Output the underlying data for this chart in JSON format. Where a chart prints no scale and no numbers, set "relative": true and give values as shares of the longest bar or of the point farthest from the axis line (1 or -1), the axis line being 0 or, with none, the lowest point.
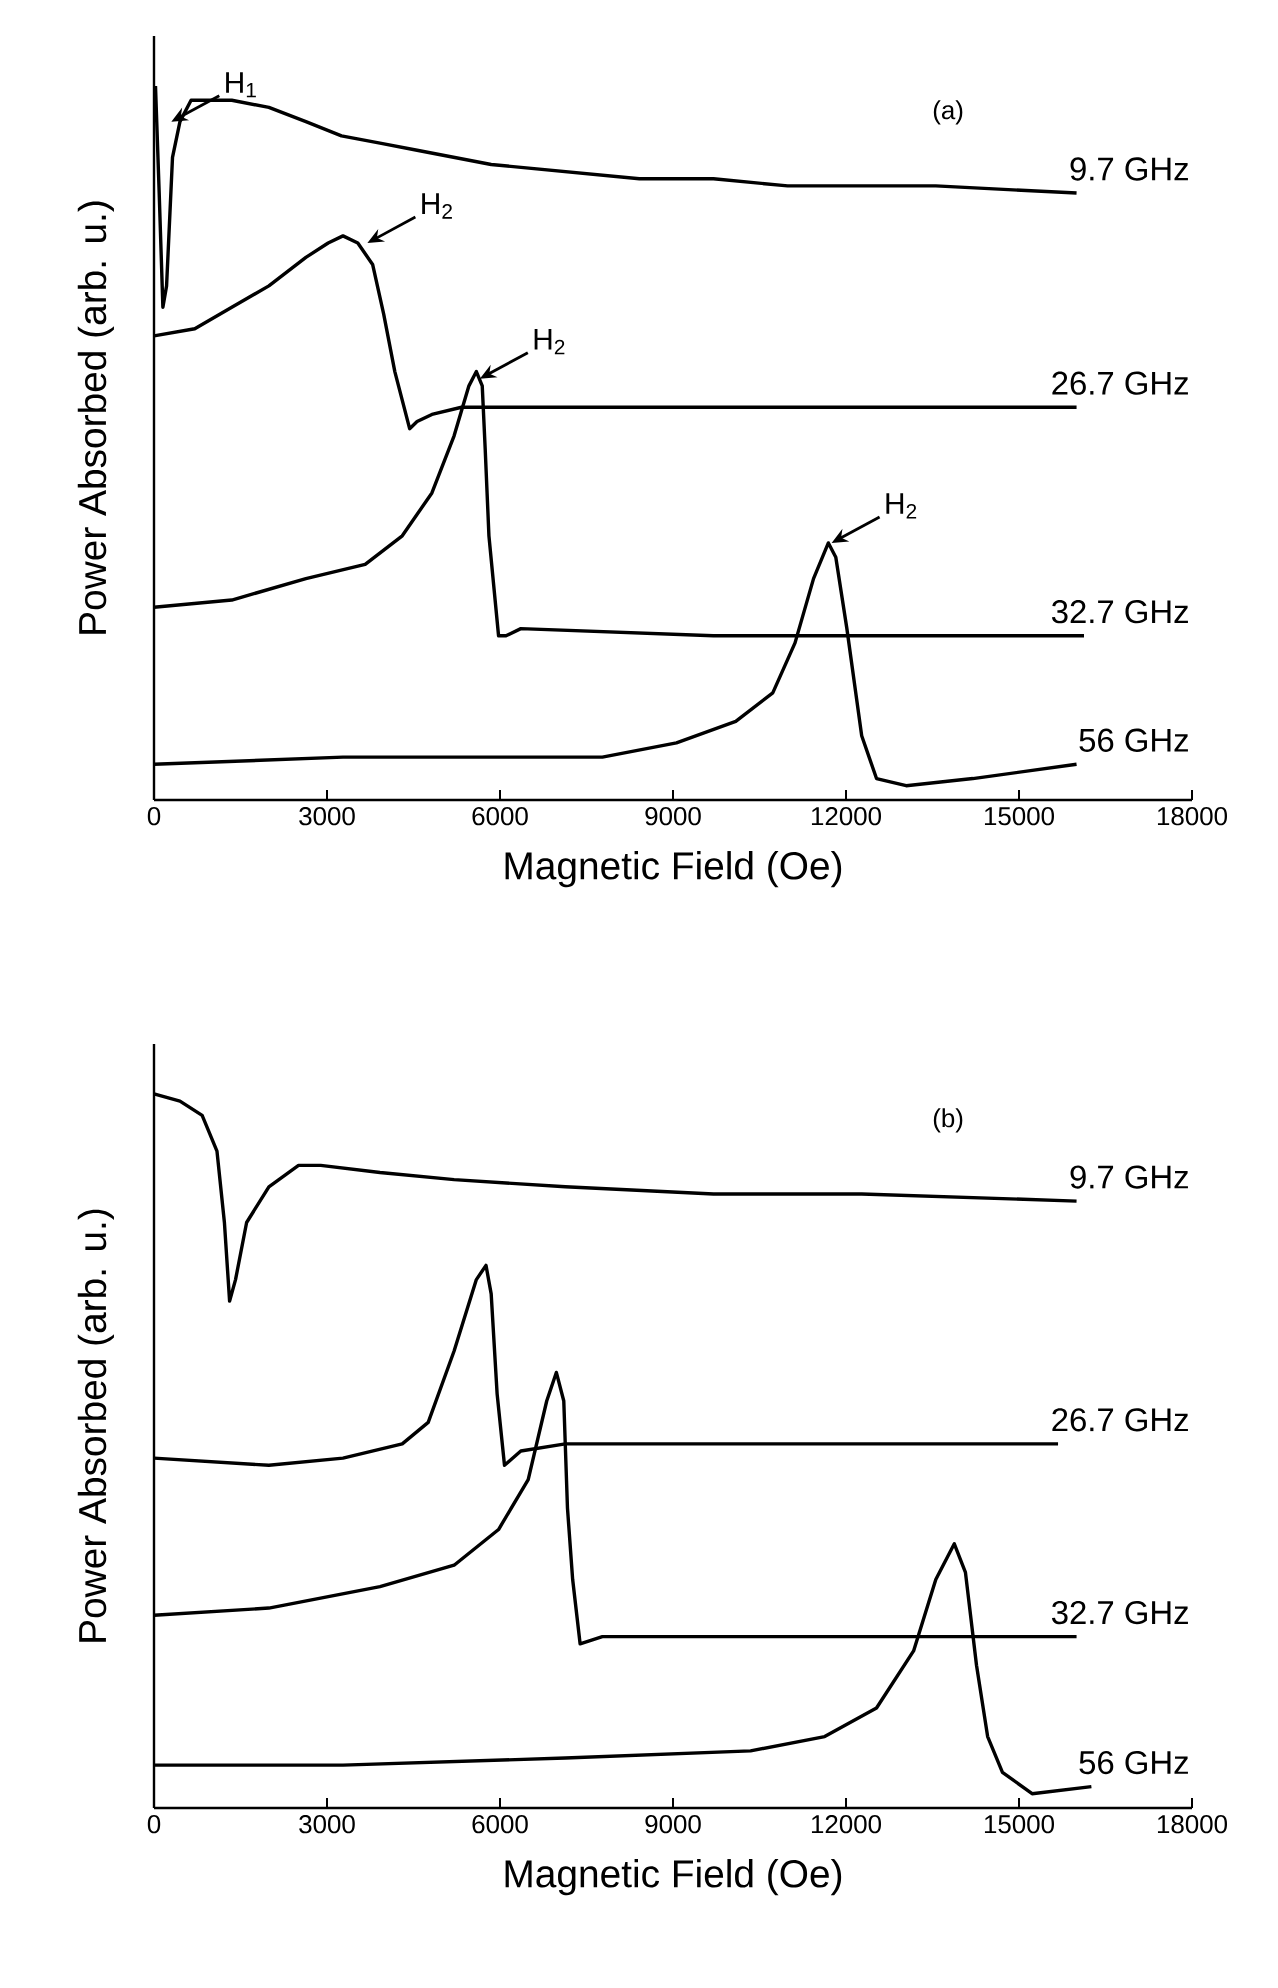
{
  "chart_data": [
    {
      "type": "line",
      "title": "(a)",
      "xlabel": "Magnetic Field (Oe)",
      "ylabel": "Power Absorbed (arb. u.)",
      "relative": true,
      "xlim": [
        0,
        18000
      ],
      "xticks": [
        0,
        3000,
        6000,
        9000,
        12000,
        15000,
        18000
      ],
      "tick_labels": "x",
      "series": [
        {
          "name": "9.7 GHz",
          "color": "#000000",
          "x": [
            26,
            90,
            154,
            218,
            321,
            450,
            643,
            900,
            1349,
            1992,
            2634,
            3251,
            3919,
            4562,
            5847,
            7132,
            8417,
            9702,
            10987,
            12246,
            13557,
            15998
          ],
          "values": [
            1.0,
            0.85,
            0.69,
            0.72,
            0.9,
            0.95,
            0.98,
            0.98,
            0.98,
            0.97,
            0.95,
            0.93,
            0.92,
            0.91,
            0.89,
            0.88,
            0.87,
            0.87,
            0.86,
            0.86,
            0.86,
            0.85
          ]
        },
        {
          "name": "26.7 GHz",
          "color": "#000000",
          "x": [
            0,
            707,
            1349,
            1992,
            2634,
            3020,
            3277,
            3534,
            3791,
            3984,
            4176,
            4433,
            4562,
            4819,
            5333,
            7132,
            15998
          ],
          "values": [
            0.65,
            0.66,
            0.69,
            0.72,
            0.76,
            0.78,
            0.79,
            0.78,
            0.75,
            0.68,
            0.6,
            0.52,
            0.53,
            0.54,
            0.55,
            0.55,
            0.55
          ]
        },
        {
          "name": "32.7 GHz",
          "color": "#000000",
          "x": [
            0,
            1349,
            2634,
            3662,
            4305,
            4819,
            5204,
            5461,
            5590,
            5692,
            5744,
            5808,
            5975,
            6104,
            6361,
            9702,
            16127
          ],
          "values": [
            0.27,
            0.28,
            0.31,
            0.33,
            0.37,
            0.43,
            0.51,
            0.58,
            0.6,
            0.58,
            0.49,
            0.37,
            0.23,
            0.23,
            0.24,
            0.23,
            0.23
          ]
        },
        {
          "name": "56 GHz",
          "color": "#000000",
          "x": [
            0,
            3277,
            5847,
            7775,
            9060,
            10088,
            10730,
            11116,
            11437,
            11694,
            11823,
            12015,
            12272,
            12529,
            13043,
            14199,
            15998
          ],
          "values": [
            0.05,
            0.06,
            0.06,
            0.06,
            0.08,
            0.11,
            0.15,
            0.22,
            0.31,
            0.36,
            0.34,
            0.24,
            0.09,
            0.03,
            0.02,
            0.03,
            0.05
          ]
        }
      ],
      "annotations": [
        {
          "text": "H$_{1}$",
          "x": 300,
          "y": 0.95
        },
        {
          "text": "H$_{2}$",
          "x": 3700,
          "y": 0.78
        },
        {
          "text": "H$_{2}$",
          "x": 5650,
          "y": 0.59
        },
        {
          "text": "H$_{2}$",
          "x": 11750,
          "y": 0.36
        }
      ]
    },
    {
      "type": "line",
      "title": "(b)",
      "xlabel": "Magnetic Field (Oe)",
      "ylabel": "Power Absorbed (arb. u.)",
      "relative": true,
      "xlim": [
        0,
        18000
      ],
      "xticks": [
        0,
        3000,
        6000,
        9000,
        12000,
        15000,
        18000
      ],
      "tick_labels": "x",
      "series": [
        {
          "name": "9.7 GHz",
          "color": "#000000",
          "x": [
            0,
            450,
            835,
            1092,
            1221,
            1311,
            1414,
            1606,
            1992,
            2506,
            2891,
            3919,
            5204,
            7132,
            9702,
            12272,
            15998
          ],
          "values": [
            1.0,
            0.99,
            0.97,
            0.92,
            0.82,
            0.71,
            0.74,
            0.82,
            0.87,
            0.9,
            0.9,
            0.89,
            0.88,
            0.87,
            0.86,
            0.86,
            0.85
          ]
        },
        {
          "name": "26.7 GHz",
          "color": "#000000",
          "x": [
            0,
            1992,
            3277,
            4305,
            4755,
            5204,
            5590,
            5757,
            5847,
            5950,
            6078,
            6361,
            7132,
            9702,
            15677
          ],
          "values": [
            0.49,
            0.48,
            0.49,
            0.51,
            0.54,
            0.64,
            0.74,
            0.76,
            0.72,
            0.58,
            0.48,
            0.5,
            0.51,
            0.51,
            0.51
          ]
        },
        {
          "name": "32.7 GHz",
          "color": "#000000",
          "x": [
            0,
            1992,
            3919,
            5204,
            5975,
            6489,
            6810,
            6977,
            7106,
            7170,
            7260,
            7389,
            7775,
            9702,
            15998
          ],
          "values": [
            0.27,
            0.28,
            0.31,
            0.34,
            0.39,
            0.46,
            0.57,
            0.61,
            0.57,
            0.42,
            0.32,
            0.23,
            0.24,
            0.24,
            0.24
          ]
        },
        {
          "name": "56 GHz",
          "color": "#000000",
          "x": [
            0,
            3277,
            7132,
            10345,
            11630,
            12529,
            13172,
            13557,
            13878,
            14071,
            14263,
            14456,
            14713,
            15227,
            16255
          ],
          "values": [
            0.06,
            0.06,
            0.07,
            0.08,
            0.1,
            0.14,
            0.22,
            0.32,
            0.37,
            0.33,
            0.2,
            0.1,
            0.05,
            0.02,
            0.03
          ]
        }
      ]
    }
  ]
}
